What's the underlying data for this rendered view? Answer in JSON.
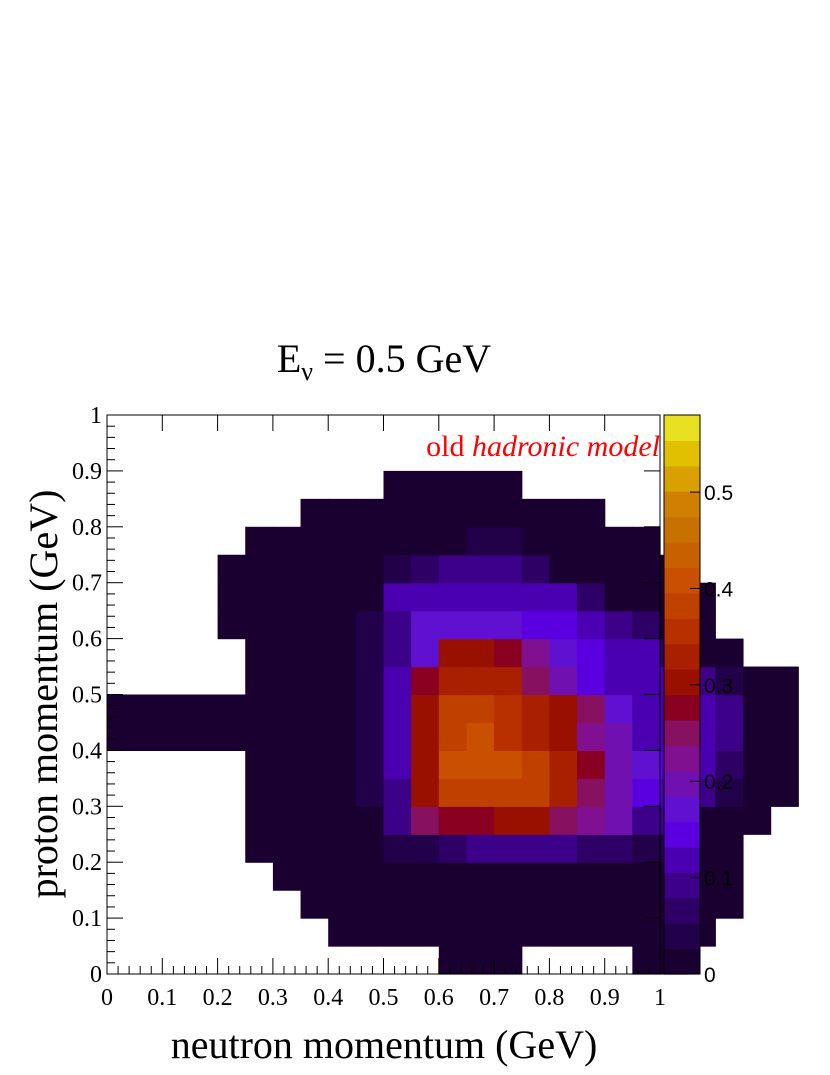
{
  "chart_data": {
    "type": "heatmap",
    "title": "E",
    "title_subscript": "ν",
    "title_suffix": " = 0.5 GeV",
    "xlabel": "neutron momentum (GeV)",
    "ylabel": "proton momentum (GeV)",
    "annotation": {
      "plain": "old ",
      "italic": "hadronic model",
      "color": "#ff0000"
    },
    "xlim": [
      0,
      1
    ],
    "ylim": [
      0,
      1
    ],
    "x_ticks": [
      "0",
      "0.1",
      "0.2",
      "0.3",
      "0.4",
      "0.5",
      "0.6",
      "0.7",
      "0.8",
      "0.9",
      "1"
    ],
    "y_ticks": [
      "0",
      "0.1",
      "0.2",
      "0.3",
      "0.4",
      "0.5",
      "0.6",
      "0.7",
      "0.8",
      "0.9",
      "1"
    ],
    "bin_width": 0.05,
    "y_bin_start": 0,
    "z_range": [
      0,
      0.58
    ],
    "colorbar_ticks": [
      "0",
      "0.1",
      "0.2",
      "0.3",
      "0.4",
      "0.5"
    ],
    "colorbar_tick_values": [
      0,
      0.1,
      0.2,
      0.3,
      0.4,
      0.5
    ],
    "colorbar_colors": [
      "#1a0030",
      "#22004a",
      "#2e0066",
      "#3d0088",
      "#4a00b0",
      "#5a00e0",
      "#6010d0",
      "#7010b0",
      "#801090",
      "#881060",
      "#8a0020",
      "#9a1000",
      "#a82000",
      "#b83000",
      "#c04000",
      "#c85000",
      "#c86000",
      "#c87000",
      "#d08000",
      "#d8a000",
      "#e0c000",
      "#e8e020"
    ],
    "grid": false,
    "rows": [
      [
        0,
        0,
        0,
        0,
        0,
        0,
        0,
        0,
        0,
        0,
        0,
        0,
        0.01,
        0.01,
        0.01,
        0,
        0,
        0,
        0,
        0.01,
        0.01,
        0,
        0,
        0,
        0
      ],
      [
        0,
        0,
        0,
        0,
        0,
        0,
        0,
        0,
        0.01,
        0.01,
        0.01,
        0.01,
        0.01,
        0.01,
        0.01,
        0.01,
        0.01,
        0.01,
        0.01,
        0.01,
        0.01,
        0.01,
        0,
        0,
        0
      ],
      [
        0,
        0,
        0,
        0,
        0,
        0,
        0,
        0.01,
        0.01,
        0.01,
        0.01,
        0.01,
        0.01,
        0.01,
        0.01,
        0.01,
        0.01,
        0.01,
        0.01,
        0.01,
        0.01,
        0.01,
        0.01,
        0,
        0
      ],
      [
        0,
        0,
        0,
        0,
        0,
        0,
        0.01,
        0.01,
        0.01,
        0.01,
        0.01,
        0.02,
        0.02,
        0.02,
        0.02,
        0.02,
        0.02,
        0.02,
        0.01,
        0.01,
        0.01,
        0.01,
        0.01,
        0,
        0
      ],
      [
        0,
        0,
        0,
        0,
        0,
        0.01,
        0.01,
        0.01,
        0.01,
        0.01,
        0.05,
        0.05,
        0.07,
        0.1,
        0.1,
        0.1,
        0.1,
        0.07,
        0.07,
        0.05,
        0.03,
        0.01,
        0.01,
        0,
        0
      ],
      [
        0,
        0,
        0,
        0,
        0,
        0.01,
        0.01,
        0.01,
        0.01,
        0.01,
        0.08,
        0.26,
        0.27,
        0.28,
        0.29,
        0.29,
        0.25,
        0.22,
        0.2,
        0.1,
        0.08,
        0.02,
        0.01,
        0.01,
        0
      ],
      [
        0,
        0,
        0,
        0,
        0,
        0.01,
        0.01,
        0.01,
        0.01,
        0.05,
        0.1,
        0.29,
        0.38,
        0.38,
        0.38,
        0.37,
        0.32,
        0.26,
        0.21,
        0.15,
        0.12,
        0.08,
        0.04,
        0.01,
        0.01
      ],
      [
        0,
        0,
        0,
        0,
        0,
        0.01,
        0.01,
        0.01,
        0.01,
        0.05,
        0.12,
        0.3,
        0.4,
        0.42,
        0.42,
        0.38,
        0.32,
        0.27,
        0.2,
        0.17,
        0.14,
        0.12,
        0.06,
        0.01,
        0.01
      ],
      [
        0.01,
        0.01,
        0.01,
        0.01,
        0.01,
        0.01,
        0.01,
        0.01,
        0.01,
        0.04,
        0.12,
        0.29,
        0.39,
        0.41,
        0.35,
        0.33,
        0.31,
        0.23,
        0.2,
        0.13,
        0.13,
        0.12,
        0.08,
        0.01,
        0.01
      ],
      [
        0.01,
        0.01,
        0.01,
        0.01,
        0.01,
        0.01,
        0.01,
        0.01,
        0.01,
        0.05,
        0.12,
        0.29,
        0.39,
        0.38,
        0.36,
        0.34,
        0.31,
        0.25,
        0.17,
        0.13,
        0.13,
        0.11,
        0.08,
        0.01,
        0.01
      ],
      [
        0,
        0,
        0,
        0,
        0,
        0.01,
        0.01,
        0.01,
        0.01,
        0.05,
        0.13,
        0.27,
        0.32,
        0.33,
        0.32,
        0.26,
        0.2,
        0.14,
        0.13,
        0.13,
        0.12,
        0.08,
        0.04,
        0.01,
        0.01
      ],
      [
        0,
        0,
        0,
        0,
        0,
        0.01,
        0.01,
        0.01,
        0.01,
        0.05,
        0.08,
        0.18,
        0.29,
        0.31,
        0.28,
        0.22,
        0.16,
        0.14,
        0.13,
        0.11,
        0.06,
        0.02,
        0.01,
        0,
        0
      ],
      [
        0,
        0,
        0,
        0,
        0.01,
        0.01,
        0.01,
        0.01,
        0.01,
        0.04,
        0.1,
        0.16,
        0.18,
        0.16,
        0.16,
        0.15,
        0.14,
        0.13,
        0.09,
        0.06,
        0.02,
        0.01,
        0,
        0,
        0
      ],
      [
        0,
        0,
        0,
        0,
        0.01,
        0.01,
        0.01,
        0.01,
        0.01,
        0.02,
        0.12,
        0.12,
        0.12,
        0.12,
        0.12,
        0.13,
        0.13,
        0.07,
        0.02,
        0.01,
        0.01,
        0.01,
        0,
        0,
        0
      ],
      [
        0,
        0,
        0,
        0,
        0.01,
        0.01,
        0.01,
        0.01,
        0.01,
        0.02,
        0.04,
        0.07,
        0.08,
        0.1,
        0.08,
        0.07,
        0.02,
        0.01,
        0.01,
        0.01,
        0.01,
        0,
        0,
        0,
        0
      ],
      [
        0,
        0,
        0,
        0,
        0,
        0.01,
        0.01,
        0.01,
        0.01,
        0.01,
        0.01,
        0.01,
        0.02,
        0.04,
        0.04,
        0.02,
        0.01,
        0.01,
        0.01,
        0.01,
        0,
        0,
        0,
        0,
        0
      ],
      [
        0,
        0,
        0,
        0,
        0,
        0,
        0,
        0.01,
        0.01,
        0.01,
        0.01,
        0.01,
        0.01,
        0.01,
        0.01,
        0.01,
        0.01,
        0.01,
        0,
        0,
        0,
        0,
        0,
        0,
        0
      ],
      [
        0,
        0,
        0,
        0,
        0,
        0,
        0,
        0,
        0,
        0,
        0.01,
        0.01,
        0.01,
        0.01,
        0.01,
        0,
        0,
        0,
        0,
        0,
        0,
        0,
        0,
        0,
        0
      ]
    ]
  }
}
